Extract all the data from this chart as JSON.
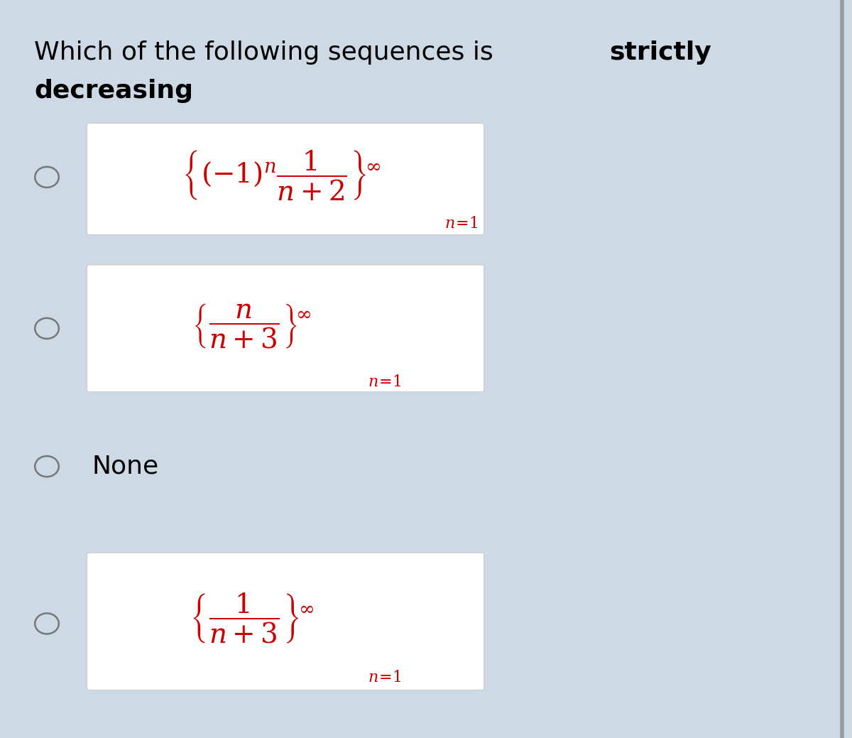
{
  "bg_color": "#cdd9e5",
  "white_box_color": "#ffffff",
  "title_normal": "Which of the following sequences is ",
  "title_bold_1": "strictly",
  "title_bold_2": "decreasing",
  "title_fontsize": 26,
  "radio_color": "#777777",
  "math_color": "#cc0000",
  "math_fontsize": 28,
  "sub_fontsize": 16,
  "none_fontsize": 26,
  "border_color": "#999999"
}
